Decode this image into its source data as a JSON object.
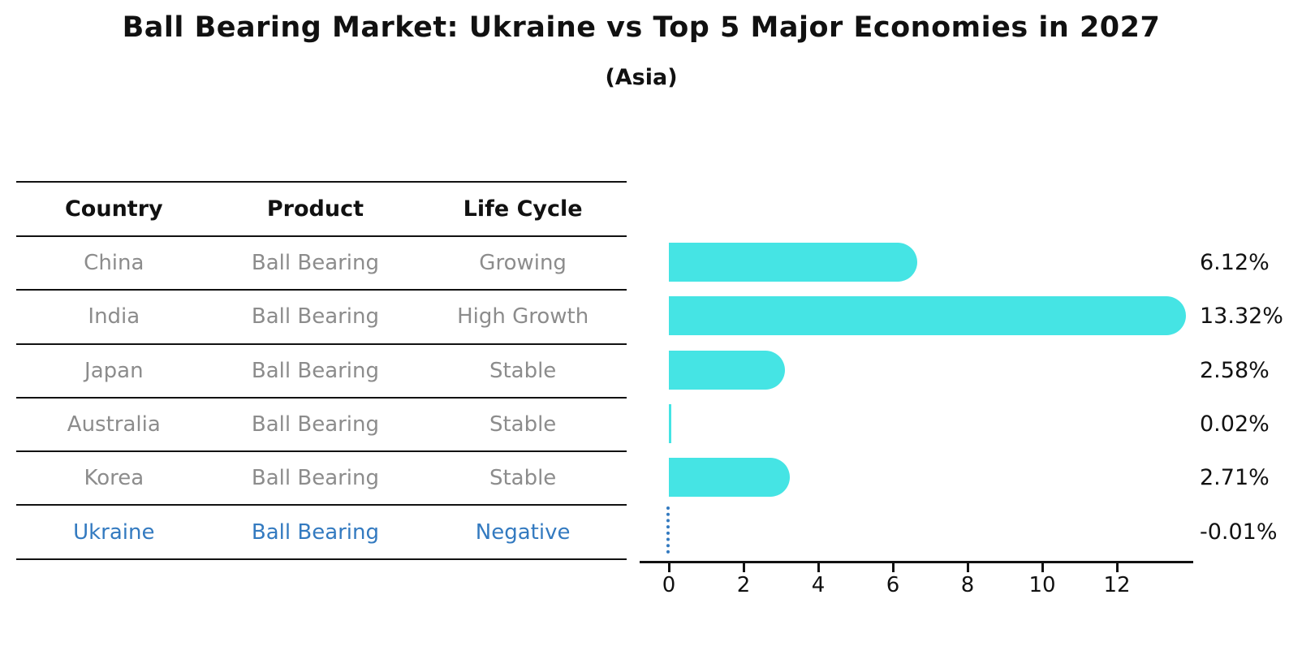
{
  "title": "Ball Bearing Market: Ukraine vs Top 5 Major Economies in 2027",
  "subtitle": "(Asia)",
  "table": {
    "headers": [
      "Country",
      "Product",
      "Life Cycle"
    ],
    "rows": [
      {
        "country": "China",
        "product": "Ball Bearing",
        "life_cycle": "Growing",
        "highlight": false
      },
      {
        "country": "India",
        "product": "Ball Bearing",
        "life_cycle": "High Growth",
        "highlight": false
      },
      {
        "country": "Japan",
        "product": "Ball Bearing",
        "life_cycle": "Stable",
        "highlight": false
      },
      {
        "country": "Australia",
        "product": "Ball Bearing",
        "life_cycle": "Stable",
        "highlight": false
      },
      {
        "country": "Korea",
        "product": "Ball Bearing",
        "life_cycle": "Stable",
        "highlight": false
      },
      {
        "country": "Ukraine",
        "product": "Ball Bearing",
        "life_cycle": "Negative",
        "highlight": true
      }
    ]
  },
  "chart_data": {
    "type": "bar",
    "orientation": "horizontal",
    "title": "Ball Bearing Market: Ukraine vs Top 5 Major Economies in 2027",
    "subtitle": "(Asia)",
    "categories": [
      "China",
      "India",
      "Japan",
      "Australia",
      "Korea",
      "Ukraine"
    ],
    "values": [
      6.12,
      13.32,
      2.58,
      0.02,
      2.71,
      -0.01
    ],
    "value_labels": [
      "6.12%",
      "13.32%",
      "2.58%",
      "0.02%",
      "2.71%",
      "-0.01%"
    ],
    "x_ticks": [
      "0",
      "2",
      "4",
      "6",
      "8",
      "10",
      "12"
    ],
    "xlim": [
      -0.75,
      14.05
    ],
    "xlabel": "",
    "ylabel": "",
    "grid": false,
    "legend": false,
    "negative_bar_style": "dotted-line-at-zero"
  },
  "colors": {
    "bar": "#45E4E4",
    "highlight_blue": "#337ac0",
    "row_text": "#8c8c8c",
    "header_text": "#111111",
    "axis": "#111111",
    "background": "#ffffff"
  }
}
